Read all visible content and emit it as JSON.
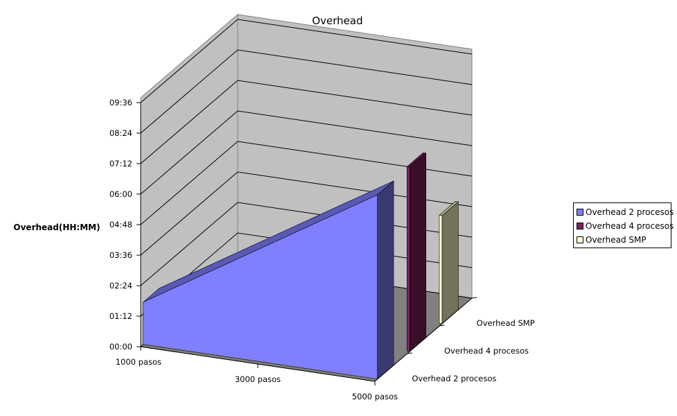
{
  "chart_data": {
    "type": "area",
    "title": "Overhead",
    "ylabel": "Overhead(HH:MM)",
    "xlabel": "",
    "categories": [
      "1000 pasos",
      "3000 pasos",
      "5000 pasos"
    ],
    "y_ticks": [
      "00:00",
      "01:12",
      "02:24",
      "03:36",
      "04:48",
      "06:00",
      "07:12",
      "08:24",
      "09:36"
    ],
    "y_tick_minutes": [
      0,
      72,
      144,
      216,
      288,
      360,
      432,
      504,
      576
    ],
    "ylim_minutes": [
      0,
      576
    ],
    "y_unit": "minutes (HH:MM)",
    "grid": true,
    "legend_position": "right",
    "series": [
      {
        "name": "Overhead 2 procesos",
        "values_minutes": [
          100,
          null,
          435
        ],
        "values_hhmm": [
          "01:40",
          null,
          "07:15"
        ],
        "color": "#8080ff"
      },
      {
        "name": "Overhead 4 procesos",
        "values_minutes": [
          null,
          null,
          435
        ],
        "values_hhmm": [
          null,
          null,
          "07:15"
        ],
        "color": "#802060"
      },
      {
        "name": "Overhead SMP",
        "values_minutes": [
          null,
          null,
          255
        ],
        "values_hhmm": [
          null,
          null,
          "04:15"
        ],
        "color": "#ffffcc"
      }
    ],
    "depth_labels": [
      "Overhead 2 procesos",
      "Overhead 4 procesos",
      "Overhead SMP"
    ]
  }
}
